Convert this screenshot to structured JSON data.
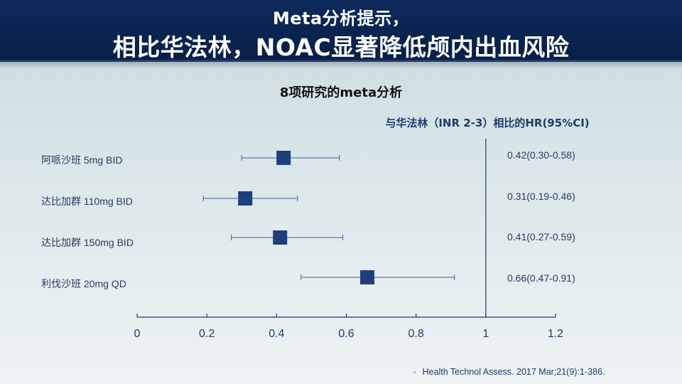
{
  "header": {
    "line1": "Meta分析提示，",
    "line2": "相比华法林，NOAC显著降低颅内出血风险"
  },
  "subtitle": "8项研究的meta分析",
  "hr_header": "与华法林（INR 2-3）相比的HR(95%CI)",
  "citation": "Health Technol Assess. 2017 Mar;21(9):1-386.",
  "colors": {
    "header_bg": "#0d2a5c",
    "marker": "#1f3f7c",
    "whisker": "#3a5fa8",
    "axis": "#1f3b6e"
  },
  "chart_data": {
    "type": "forest",
    "xlim": [
      0,
      1.2
    ],
    "reference_line": 1,
    "x_ticks": [
      "0",
      "0.2",
      "0.4",
      "0.6",
      "0.8",
      "1",
      "1.2"
    ],
    "rows": [
      {
        "label": "阿哌沙班 5mg BID",
        "hr": 0.42,
        "lo": 0.3,
        "hi": 0.58,
        "ci_text": "0.42(0.30-0.58)"
      },
      {
        "label": "达比加群 110mg BID",
        "hr": 0.31,
        "lo": 0.19,
        "hi": 0.46,
        "ci_text": "0.31(0.19-0.46)"
      },
      {
        "label": "达比加群 150mg BID",
        "hr": 0.41,
        "lo": 0.27,
        "hi": 0.59,
        "ci_text": "0.41(0.27-0.59)"
      },
      {
        "label": "利伐沙班 20mg QD",
        "hr": 0.66,
        "lo": 0.47,
        "hi": 0.91,
        "ci_text": "0.66(0.47-0.91)"
      }
    ]
  }
}
